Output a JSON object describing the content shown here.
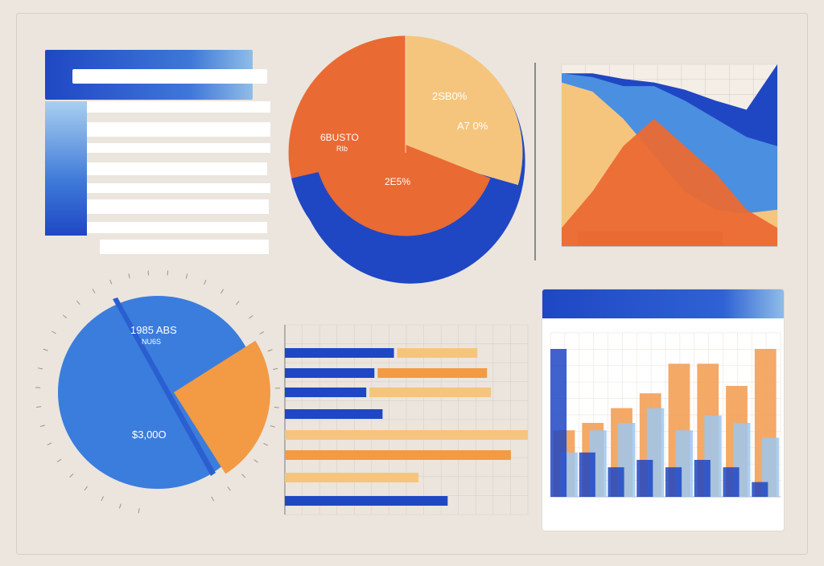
{
  "colors": {
    "background": "#ece6df",
    "blue": "#1f47c4",
    "light_blue": "#4b8fe0",
    "pale_blue": "#9cc7ee",
    "orange": "#ea6a33",
    "light_orange": "#f3a056",
    "pale_orange": "#f5c57e",
    "white": "#ffffff"
  },
  "top_left_panel": {
    "header_text": "",
    "sidebar_labels": [
      "",
      "",
      "",
      "",
      "",
      ""
    ]
  },
  "chart_data": [
    {
      "type": "pie",
      "slices": [
        {
          "label": "",
          "value": 33,
          "color": "#ea6a33"
        },
        {
          "label": "",
          "value": 22,
          "color": "#f5c57e"
        },
        {
          "label": "",
          "value": 30,
          "color": "#1f47c4"
        },
        {
          "label": "",
          "value": 15,
          "color": "#ea6a33"
        }
      ],
      "annotations": [
        "6BUSTO",
        "RIb",
        "2SB0%",
        "A7 0%",
        "2E5%"
      ]
    },
    {
      "type": "area",
      "title": "",
      "series": [
        {
          "color": "#f5c57e",
          "values": [
            90,
            85,
            70,
            50,
            30,
            20,
            18,
            20
          ]
        },
        {
          "color": "#4b8fe0",
          "values": [
            95,
            93,
            88,
            88,
            80,
            70,
            60,
            55
          ]
        },
        {
          "color": "#1f47c4",
          "values": [
            95,
            95,
            92,
            90,
            86,
            80,
            75,
            100
          ]
        },
        {
          "color": "#ea6a33",
          "values": [
            10,
            30,
            55,
            70,
            55,
            40,
            20,
            10
          ]
        }
      ]
    },
    {
      "type": "pie",
      "slices": [
        {
          "label": "",
          "value": 68,
          "color": "#3b7ddd"
        },
        {
          "label": "",
          "value": 20,
          "color": "#f39a44"
        },
        {
          "label": "",
          "value": 12,
          "color": "#2a5fd0"
        }
      ],
      "annotations": [
        "1985 ABS",
        "NU6S",
        "$3,00O"
      ]
    },
    {
      "type": "bar",
      "orientation": "horizontal",
      "title": "",
      "subtitle": "",
      "rows": [
        {
          "blue": 0.67,
          "orange": 0.33
        },
        {
          "blue": 0.55,
          "orange": 0.45
        },
        {
          "blue": 0.5,
          "orange": 0.5
        },
        {
          "blue": 0.6,
          "orange": 0.0
        },
        {
          "blue": 0.0,
          "orange": 1.0
        },
        {
          "blue": 0.0,
          "orange": 0.93
        },
        {
          "blue": 0.0,
          "orange": 0.55
        },
        {
          "blue": 1.0,
          "orange": 0.0
        }
      ]
    },
    {
      "type": "bar",
      "orientation": "vertical",
      "header_left": "",
      "header_right": "",
      "subheader": "",
      "categories": [
        "",
        "",
        "",
        "",
        "",
        "",
        "",
        ""
      ],
      "series": [
        {
          "color": "#f3a056",
          "values": [
            0.45,
            0.5,
            0.6,
            0.7,
            0.9,
            0.9,
            0.75,
            1.0
          ]
        },
        {
          "color": "#9cc7ee",
          "values": [
            0.3,
            0.45,
            0.5,
            0.6,
            0.45,
            0.55,
            0.5,
            0.4
          ]
        },
        {
          "color": "#1f47c4",
          "values": [
            1.0,
            0.3,
            0.2,
            0.25,
            0.2,
            0.25,
            0.2,
            0.1
          ]
        }
      ]
    }
  ]
}
